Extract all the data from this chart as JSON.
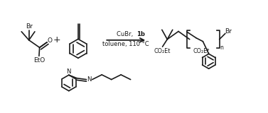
{
  "bg_color": "#ffffff",
  "line_color": "#1a1a1a",
  "text_color": "#1a1a1a",
  "figsize": [
    3.77,
    1.6
  ],
  "dpi": 100,
  "product_CO2Et": "CO₂Et",
  "arrow_text1": "CuBr, ",
  "arrow_text1b": "1b",
  "arrow_text2": "toluene, 110 °C"
}
